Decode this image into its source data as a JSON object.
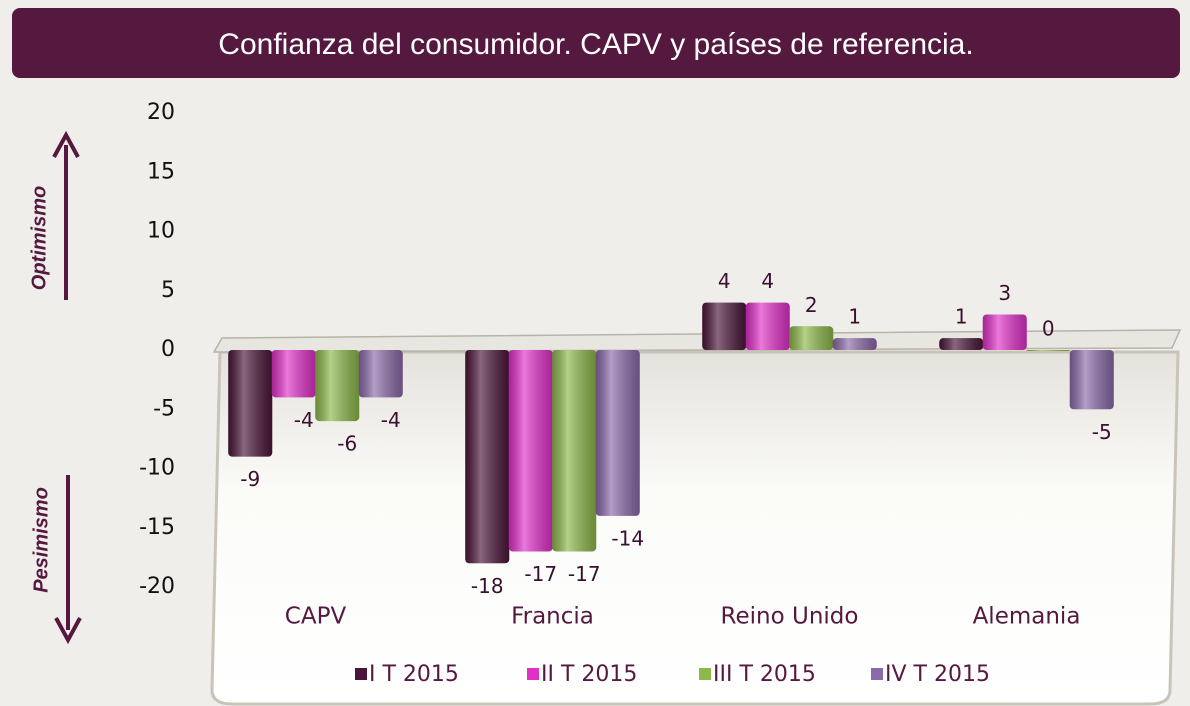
{
  "chart_data": {
    "type": "bar",
    "title": "Confianza del consumidor. CAPV y países de referencia.",
    "annotations": [
      "Optimismo",
      "Pesimismo"
    ],
    "categories": [
      "CAPV",
      "Francia",
      "Reino Unido",
      "Alemania"
    ],
    "series": [
      {
        "name": "I T 2015",
        "color": "#4a1538",
        "values": [
          -9,
          -18,
          4,
          1
        ]
      },
      {
        "name": "II T 2015",
        "color": "#e030c8",
        "values": [
          -4,
          -17,
          4,
          3
        ]
      },
      {
        "name": "III T 2015",
        "color": "#8db84a",
        "values": [
          -6,
          -17,
          2,
          0
        ]
      },
      {
        "name": "IV T 2015",
        "color": "#8a6aa8",
        "values": [
          -4,
          -14,
          1,
          -5
        ]
      }
    ],
    "ylim": [
      -20,
      20
    ],
    "yticks": [
      -20,
      -15,
      -10,
      -5,
      0,
      5,
      10,
      15,
      20
    ],
    "legend": "bottom"
  }
}
